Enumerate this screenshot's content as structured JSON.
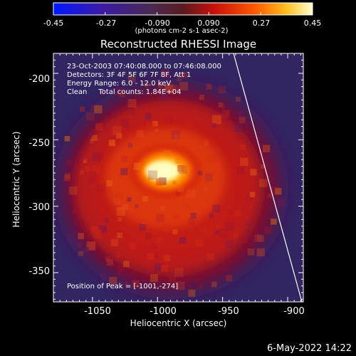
{
  "colorbar": {
    "ticks": [
      "-0.45",
      "-0.27",
      "-0.090",
      "0.090",
      "0.27",
      "0.45"
    ],
    "units_label": "(photons cm-2 s-1 asec-2)"
  },
  "plot": {
    "title": "Reconstructed RHESSI Image",
    "info_lines": [
      "23-Oct-2003 07:40:08.000 to 07:46:08.000",
      "Detectors: 3F 4F 5F 6F 7F 8F, Att 1",
      "Energy Range: 6.0 - 12.0 keV",
      "Clean     Total counts: 1.84E+04"
    ],
    "peak_label": "Position of Peak = [-1001,-274]",
    "x_axis": {
      "label": "Heliocentric X (arcsec)",
      "ticks": [
        "-1050",
        "-1000",
        "-950",
        "-900"
      ],
      "range": [
        -1080,
        -888
      ]
    },
    "y_axis": {
      "label": "Heliocentric Y (arcsec)",
      "ticks": [
        "-200",
        "-250",
        "-300",
        "-350"
      ],
      "range": [
        -372,
        -185
      ]
    },
    "peak": {
      "x": -1001,
      "y": -274
    }
  },
  "timestamp": "6-May-2022 14:22",
  "colors": {
    "background": "#000000",
    "frame": "#ffffff",
    "limb_line": "#ffffff"
  }
}
